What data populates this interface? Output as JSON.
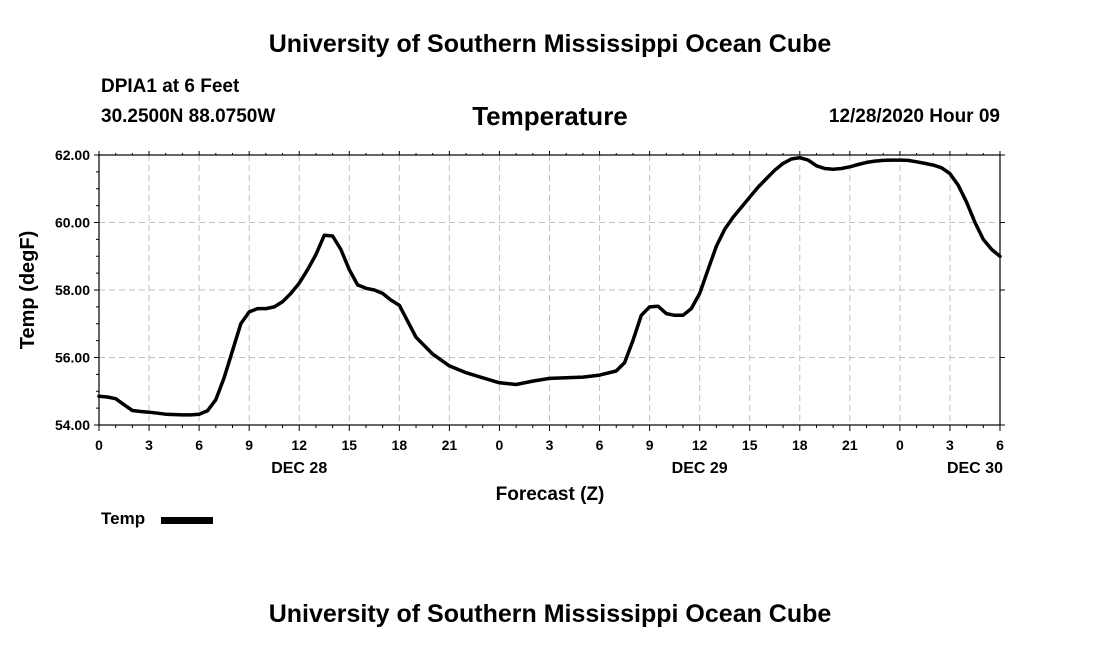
{
  "header": {
    "title": "University of Southern Mississippi Ocean Cube",
    "station_name": "DPIA1 at 6 Feet",
    "station_coords": "30.2500N 88.0750W",
    "chart_title": "Temperature",
    "valid_time": "12/28/2020 Hour 09"
  },
  "footer": {
    "title": "University of Southern Mississippi Ocean Cube"
  },
  "legend": {
    "label": "Temp"
  },
  "colors": {
    "line": "#000000",
    "grid": "#c0c0c0",
    "background": "#ffffff"
  },
  "chart_data": {
    "type": "line",
    "title": "Temperature",
    "xlabel": "Forecast (Z)",
    "ylabel": "Temp (degF)",
    "ylim": [
      54,
      62
    ],
    "xlim": [
      0,
      54
    ],
    "x_unit": "hours from DEC 28 00Z",
    "grid": true,
    "legend_position": "bottom-left",
    "yticks": [
      {
        "value": 54,
        "label": "54.00"
      },
      {
        "value": 56,
        "label": "56.00"
      },
      {
        "value": 58,
        "label": "58.00"
      },
      {
        "value": 60,
        "label": "60.00"
      },
      {
        "value": 62,
        "label": "62.00"
      }
    ],
    "xticks": [
      {
        "value": 0,
        "label": "0"
      },
      {
        "value": 3,
        "label": "3"
      },
      {
        "value": 6,
        "label": "6"
      },
      {
        "value": 9,
        "label": "9"
      },
      {
        "value": 12,
        "label": "12"
      },
      {
        "value": 15,
        "label": "15"
      },
      {
        "value": 18,
        "label": "18"
      },
      {
        "value": 21,
        "label": "21"
      },
      {
        "value": 24,
        "label": "0"
      },
      {
        "value": 27,
        "label": "3"
      },
      {
        "value": 30,
        "label": "6"
      },
      {
        "value": 33,
        "label": "9"
      },
      {
        "value": 36,
        "label": "12"
      },
      {
        "value": 39,
        "label": "15"
      },
      {
        "value": 42,
        "label": "18"
      },
      {
        "value": 45,
        "label": "21"
      },
      {
        "value": 48,
        "label": "0"
      },
      {
        "value": 51,
        "label": "3"
      },
      {
        "value": 54,
        "label": "6"
      }
    ],
    "date_labels": [
      {
        "value": 12,
        "label": "DEC 28"
      },
      {
        "value": 36,
        "label": "DEC 29"
      },
      {
        "value": 52.5,
        "label": "DEC 30"
      }
    ],
    "series": [
      {
        "name": "Temp",
        "x": [
          0,
          0.5,
          1,
          1.5,
          2,
          2.5,
          3,
          4,
          5,
          5.5,
          6,
          6.5,
          7,
          7.5,
          8,
          8.5,
          9,
          9.5,
          10,
          10.5,
          11,
          11.5,
          12,
          12.5,
          13,
          13.5,
          14,
          14.5,
          15,
          15.5,
          16,
          16.5,
          17,
          17.5,
          18,
          19,
          20,
          21,
          22,
          23,
          24,
          25,
          26,
          27,
          28,
          29,
          30,
          31,
          31.5,
          32,
          32.5,
          33,
          33.5,
          34,
          34.5,
          35,
          35.5,
          36,
          36.5,
          37,
          37.5,
          38,
          38.5,
          39,
          39.5,
          40,
          40.5,
          41,
          41.5,
          42,
          42.5,
          43,
          43.5,
          44,
          44.5,
          45,
          45.5,
          46,
          46.5,
          47,
          47.5,
          48,
          48.5,
          49,
          49.5,
          50,
          50.5,
          51,
          51.5,
          52,
          52.5,
          53,
          53.5,
          54
        ],
        "values": [
          54.85,
          54.83,
          54.78,
          54.6,
          54.43,
          54.4,
          54.38,
          54.32,
          54.3,
          54.3,
          54.32,
          54.42,
          54.75,
          55.4,
          56.2,
          57.0,
          57.35,
          57.45,
          57.45,
          57.5,
          57.65,
          57.9,
          58.2,
          58.6,
          59.05,
          59.62,
          59.6,
          59.2,
          58.6,
          58.15,
          58.05,
          58.0,
          57.9,
          57.7,
          57.55,
          56.6,
          56.1,
          55.75,
          55.55,
          55.4,
          55.25,
          55.2,
          55.3,
          55.38,
          55.4,
          55.42,
          55.48,
          55.6,
          55.85,
          56.5,
          57.25,
          57.5,
          57.52,
          57.3,
          57.25,
          57.25,
          57.45,
          57.9,
          58.6,
          59.3,
          59.8,
          60.15,
          60.45,
          60.75,
          61.05,
          61.3,
          61.55,
          61.75,
          61.88,
          61.92,
          61.85,
          61.68,
          61.6,
          61.58,
          61.6,
          61.65,
          61.72,
          61.78,
          61.82,
          61.84,
          61.85,
          61.85,
          61.84,
          61.8,
          61.75,
          61.7,
          61.62,
          61.45,
          61.1,
          60.6,
          60.0,
          59.5,
          59.2,
          59.0
        ]
      }
    ]
  }
}
